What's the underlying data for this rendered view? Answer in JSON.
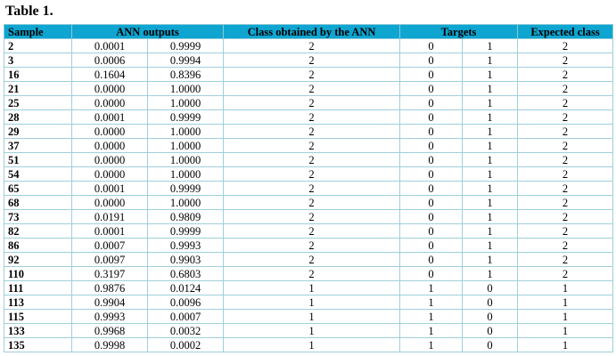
{
  "title": "Table 1.",
  "headers": {
    "sample": "Sample",
    "ann": "ANN outputs",
    "class": "Class obtained by the ANN",
    "targets": "Targets",
    "expected": "Expected class"
  },
  "rows": [
    [
      "2",
      "0.0001",
      "0.9999",
      "2",
      "0",
      "1",
      "2"
    ],
    [
      "3",
      "0.0006",
      "0.9994",
      "2",
      "0",
      "1",
      "2"
    ],
    [
      "16",
      "0.1604",
      "0.8396",
      "2",
      "0",
      "1",
      "2"
    ],
    [
      "21",
      "0.0000",
      "1.0000",
      "2",
      "0",
      "1",
      "2"
    ],
    [
      "25",
      "0.0000",
      "1.0000",
      "2",
      "0",
      "1",
      "2"
    ],
    [
      "28",
      "0.0001",
      "0.9999",
      "2",
      "0",
      "1",
      "2"
    ],
    [
      "29",
      "0.0000",
      "1.0000",
      "2",
      "0",
      "1",
      "2"
    ],
    [
      "37",
      "0.0000",
      "1.0000",
      "2",
      "0",
      "1",
      "2"
    ],
    [
      "51",
      "0.0000",
      "1.0000",
      "2",
      "0",
      "1",
      "2"
    ],
    [
      "54",
      "0.0000",
      "1.0000",
      "2",
      "0",
      "1",
      "2"
    ],
    [
      "65",
      "0.0001",
      "0.9999",
      "2",
      "0",
      "1",
      "2"
    ],
    [
      "68",
      "0.0000",
      "1.0000",
      "2",
      "0",
      "1",
      "2"
    ],
    [
      "73",
      "0.0191",
      "0.9809",
      "2",
      "0",
      "1",
      "2"
    ],
    [
      "82",
      "0.0001",
      "0.9999",
      "2",
      "0",
      "1",
      "2"
    ],
    [
      "86",
      "0.0007",
      "0.9993",
      "2",
      "0",
      "1",
      "2"
    ],
    [
      "92",
      "0.0097",
      "0.9903",
      "2",
      "0",
      "1",
      "2"
    ],
    [
      "110",
      "0.3197",
      "0.6803",
      "2",
      "0",
      "1",
      "2"
    ],
    [
      "111",
      "0.9876",
      "0.0124",
      "1",
      "1",
      "0",
      "1"
    ],
    [
      "113",
      "0.9904",
      "0.0096",
      "1",
      "1",
      "0",
      "1"
    ],
    [
      "115",
      "0.9993",
      "0.0007",
      "1",
      "1",
      "0",
      "1"
    ],
    [
      "133",
      "0.9968",
      "0.0032",
      "1",
      "1",
      "0",
      "1"
    ],
    [
      "135",
      "0.9998",
      "0.0002",
      "1",
      "1",
      "0",
      "1"
    ]
  ]
}
